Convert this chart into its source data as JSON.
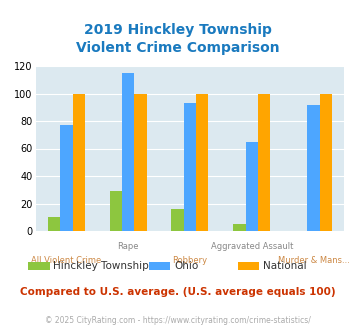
{
  "title": "2019 Hinckley Township\nViolent Crime Comparison",
  "categories": [
    "All Violent Crime",
    "Rape",
    "Robbery",
    "Aggravated Assault",
    "Murder & Mans..."
  ],
  "series": {
    "Hinckley Township": [
      10,
      29,
      16,
      5,
      0
    ],
    "Ohio": [
      77,
      115,
      93,
      65,
      92
    ],
    "National": [
      100,
      100,
      100,
      100,
      100
    ]
  },
  "colors": {
    "Hinckley Township": "#8dc63f",
    "Ohio": "#4da6ff",
    "National": "#ffa500"
  },
  "ylim": [
    0,
    120
  ],
  "yticks": [
    0,
    20,
    40,
    60,
    80,
    100,
    120
  ],
  "note": "Compared to U.S. average. (U.S. average equals 100)",
  "footer": "© 2025 CityRating.com - https://www.cityrating.com/crime-statistics/",
  "title_color": "#1a7abf",
  "note_color": "#cc3300",
  "footer_color": "#aaaaaa",
  "plot_bg": "#dce9f0"
}
